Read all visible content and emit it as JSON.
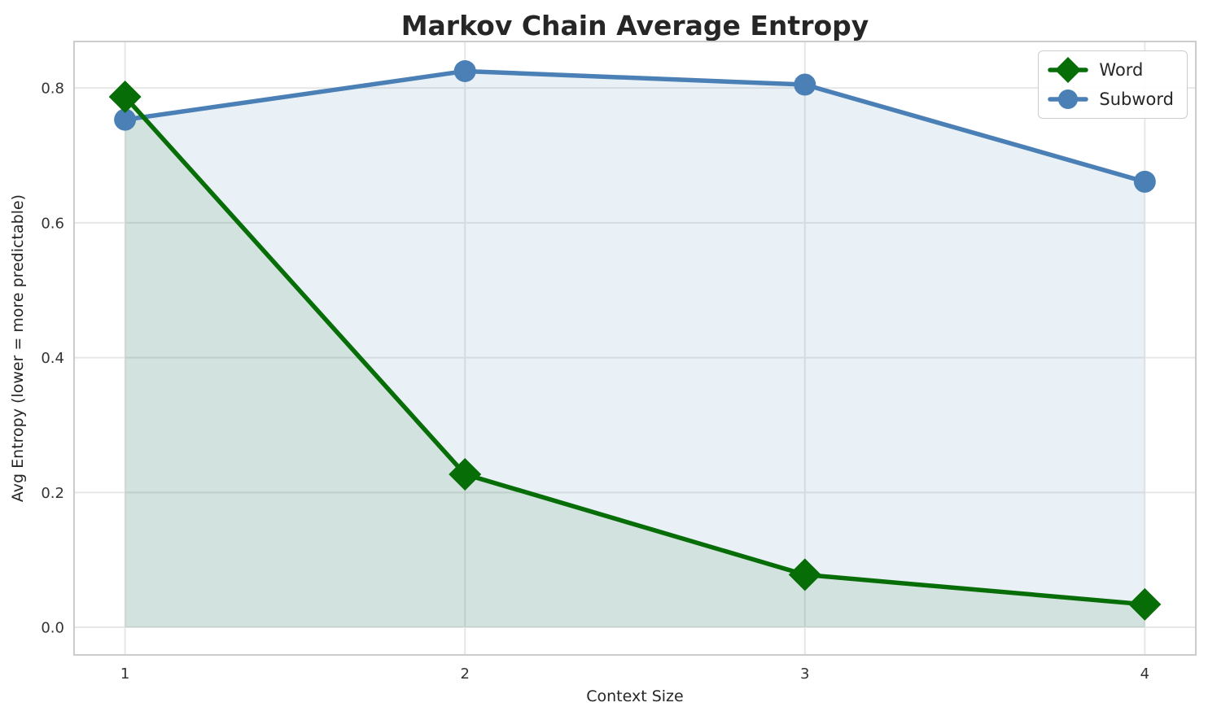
{
  "chart_data": {
    "type": "line",
    "title": "Markov Chain Average Entropy",
    "xlabel": "Context Size",
    "ylabel": "Avg Entropy (lower = more predictable)",
    "x": [
      1,
      2,
      3,
      4
    ],
    "series": [
      {
        "name": "Word",
        "values": [
          0.787,
          0.227,
          0.078,
          0.034
        ],
        "color": "#076d07",
        "marker": "diamond",
        "fill_opacity": 0.1
      },
      {
        "name": "Subword",
        "values": [
          0.753,
          0.825,
          0.805,
          0.661
        ],
        "color": "#4a80b5",
        "marker": "circle",
        "fill_opacity": 0.12
      }
    ],
    "xticks": [
      "1",
      "2",
      "3",
      "4"
    ],
    "xtick_values": [
      1,
      2,
      3,
      4
    ],
    "yticks": [
      "0.0",
      "0.2",
      "0.4",
      "0.6",
      "0.8"
    ],
    "ytick_values": [
      0.0,
      0.2,
      0.4,
      0.6,
      0.8
    ],
    "xlim": [
      0.85,
      4.15
    ],
    "ylim": [
      -0.041,
      0.869
    ],
    "grid": true,
    "area_fill": true,
    "fill_baseline": 0.0,
    "legend_position": "upper right",
    "colors": {
      "grid": "#e7e7e7",
      "spine": "#cccccc",
      "title_text": "#262626",
      "tick_text": "#333333"
    }
  }
}
